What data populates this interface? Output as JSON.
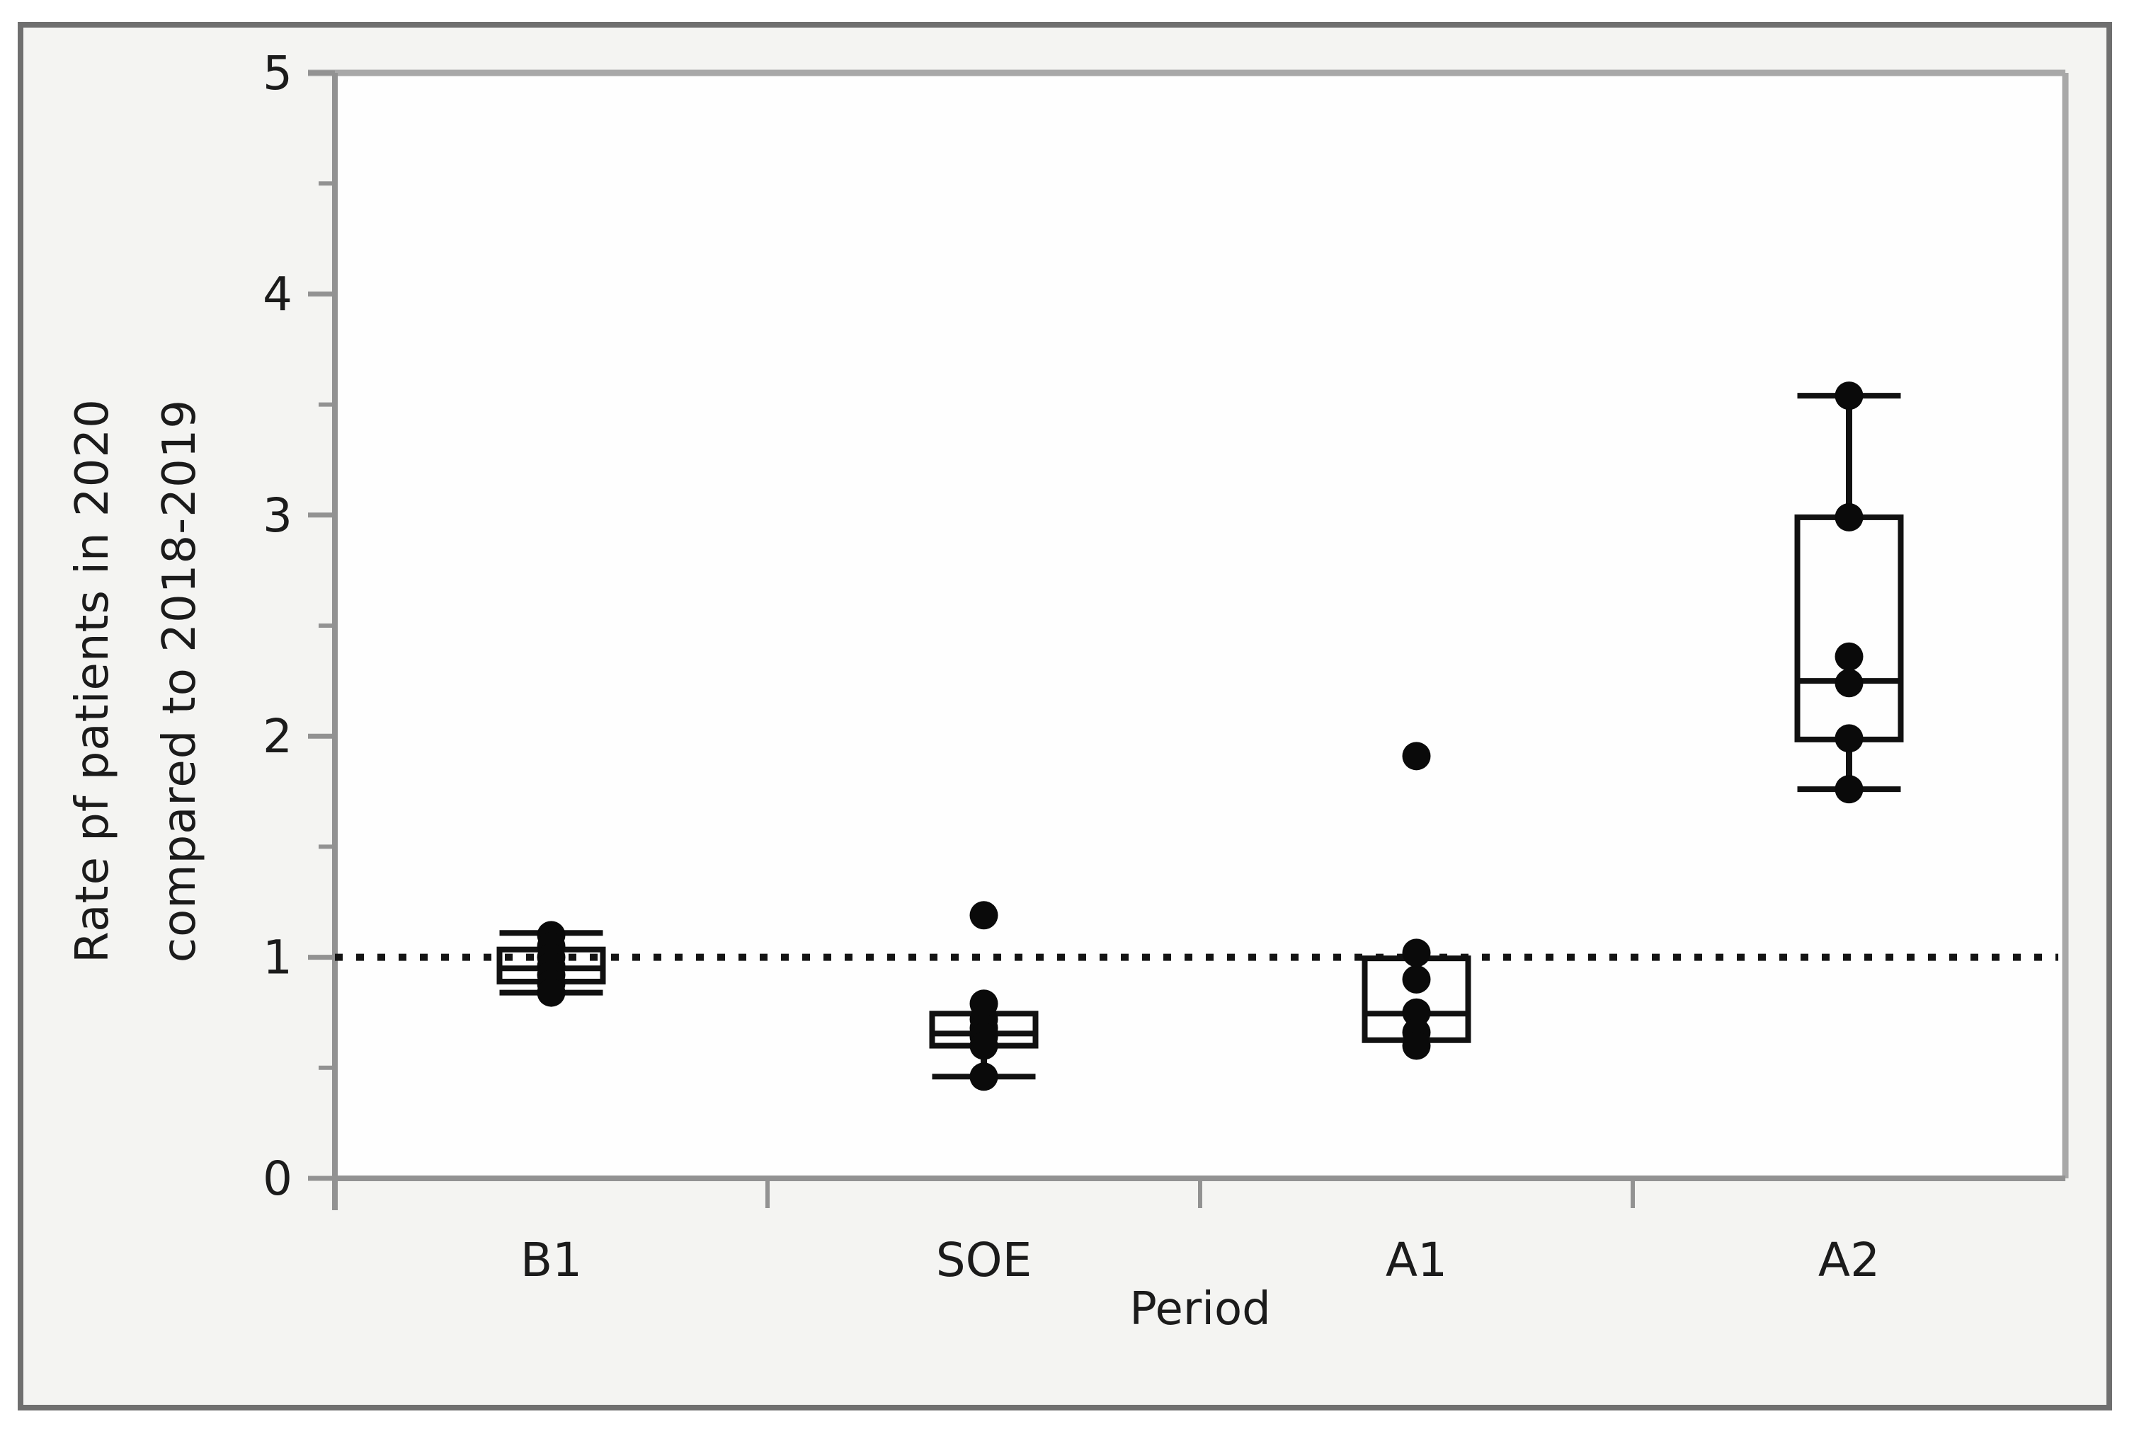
{
  "figure": {
    "background": "#f4f4f2",
    "border_color": "#6f6f6f",
    "plot_background": "#fefefe",
    "axis_color": "#929292",
    "frame_color": "#a8a8a8",
    "tick_label_color": "#1b1b1b",
    "box_color": "#111111",
    "point_color": "#0a0a0a",
    "reference_line_color": "#141414"
  },
  "chart_data": {
    "type": "boxplot",
    "title": "",
    "xlabel": "Period",
    "ylabel_line1": "Rate pf patients in 2020",
    "ylabel_line2": "compared to 2018-2019",
    "ylim": [
      0,
      5
    ],
    "y_major_ticks": [
      0,
      1,
      2,
      3,
      4,
      5
    ],
    "y_minor_ticks": [
      0.5,
      1.5,
      2.5,
      3.5,
      4.5
    ],
    "reference_line_y": 1,
    "grid": false,
    "categories": [
      {
        "label": "B1",
        "box": {
          "q1": 0.89,
          "median": 0.95,
          "q3": 1.035,
          "whisker_low": 0.84,
          "whisker_high": 1.11
        },
        "points": [
          1.1,
          1.05,
          1.0,
          0.96,
          0.92,
          0.88,
          0.84
        ]
      },
      {
        "label": "SOE",
        "box": {
          "q1": 0.6,
          "median": 0.655,
          "q3": 0.745,
          "whisker_low": 0.46,
          "whisker_high": null
        },
        "points": [
          1.19,
          0.79,
          0.72,
          0.68,
          0.64,
          0.6,
          0.46
        ]
      },
      {
        "label": "A1",
        "box": {
          "q1": 0.625,
          "median": 0.745,
          "q3": 0.995,
          "whisker_low": null,
          "whisker_high": null
        },
        "points": [
          1.91,
          1.02,
          0.9,
          0.75,
          0.66,
          0.6
        ]
      },
      {
        "label": "A2",
        "box": {
          "q1": 1.985,
          "median": 2.25,
          "q3": 2.99,
          "whisker_low": 1.76,
          "whisker_high": 3.54
        },
        "points": [
          3.54,
          2.99,
          2.36,
          2.24,
          1.99,
          1.76
        ]
      }
    ]
  }
}
